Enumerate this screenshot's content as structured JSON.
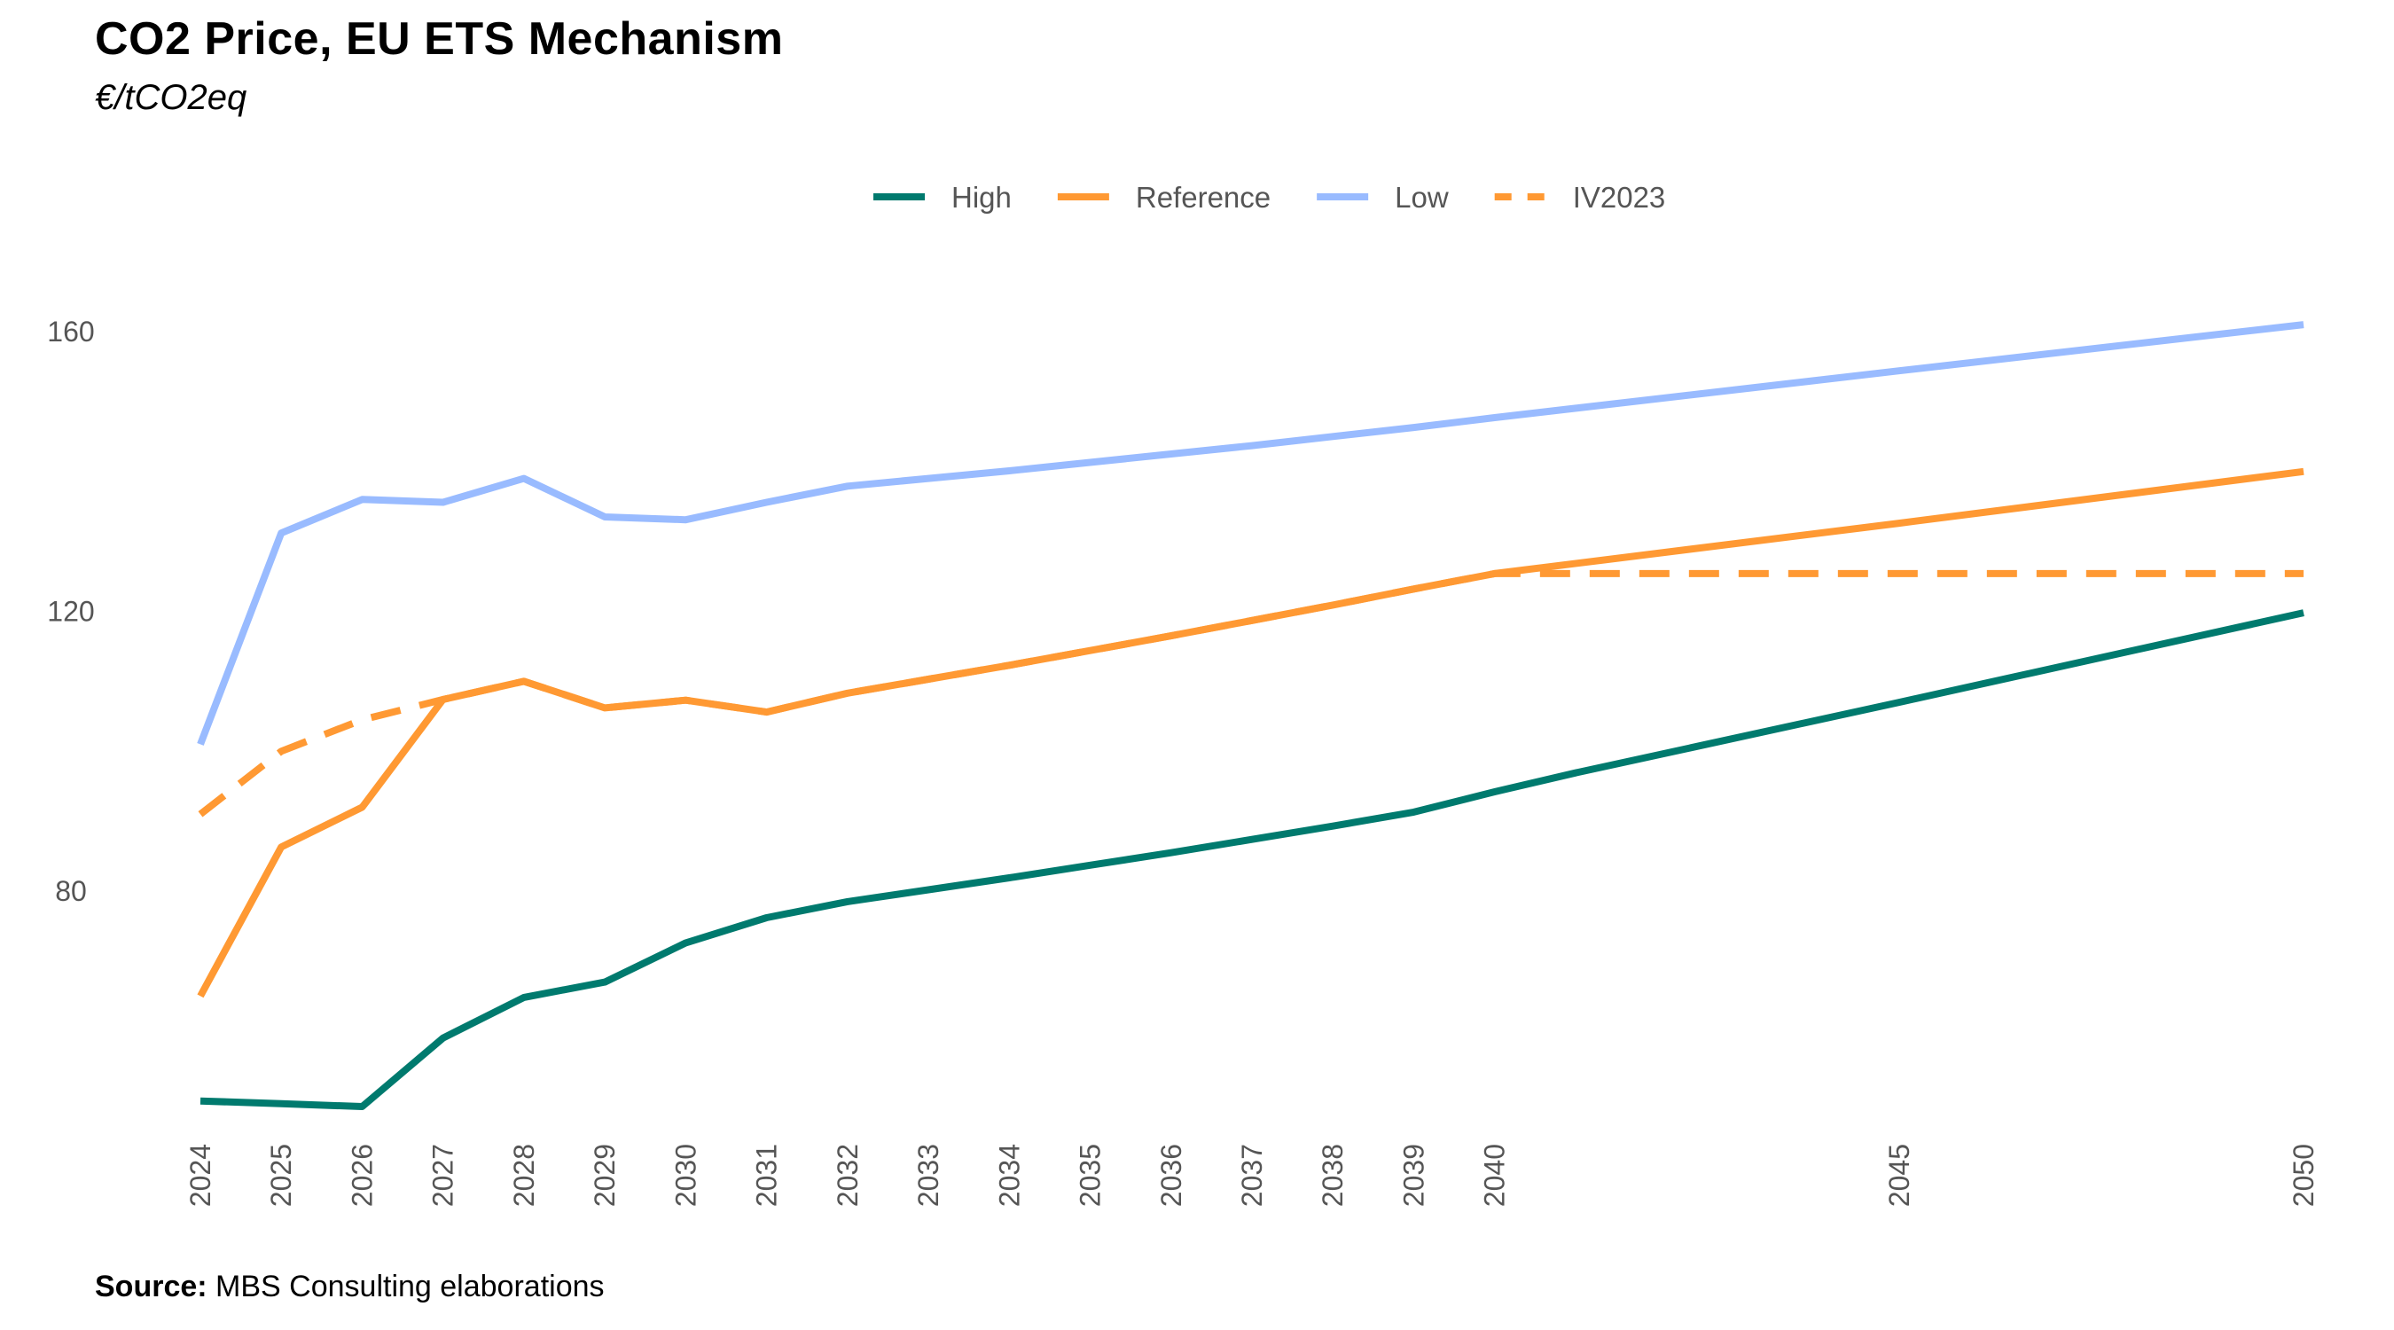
{
  "chart_data": {
    "type": "line",
    "title": "CO2 Price, EU ETS Mechanism",
    "subtitle": "€/tCO2eq",
    "source_label": "Source:",
    "source_text": "MBS Consulting elaborations",
    "x_ticks": [
      "2024",
      "2025",
      "2026",
      "2027",
      "2028",
      "2029",
      "2030",
      "2031",
      "2032",
      "2033",
      "2034",
      "2035",
      "2036",
      "2037",
      "2038",
      "2039",
      "2040",
      "2045",
      "2050"
    ],
    "xlim": [
      2024,
      2050
    ],
    "y_ticks": [
      "80",
      "120",
      "160"
    ],
    "ylim": [
      44,
      160
    ],
    "grid": false,
    "legend_position": "top",
    "series": [
      {
        "name": "High",
        "color": "#007a6e",
        "dash": "solid",
        "x": [
          2024,
          2025,
          2026,
          2027,
          2028,
          2029,
          2030,
          2031,
          2032,
          2033,
          2034,
          2035,
          2036,
          2037,
          2038,
          2039,
          2040,
          2041,
          2045,
          2050
        ],
        "values": [
          50,
          49.6,
          49.2,
          59,
          64.8,
          67,
          72.6,
          76.2,
          78.5,
          80.2,
          81.9,
          83.7,
          85.5,
          87.4,
          89.3,
          91.3,
          94.2,
          96.9,
          107,
          119.8
        ]
      },
      {
        "name": "Reference",
        "color": "#ff9933",
        "dash": "solid",
        "x": [
          2024,
          2025,
          2026,
          2027,
          2028,
          2029,
          2030,
          2031,
          2032,
          2033,
          2034,
          2035,
          2036,
          2037,
          2038,
          2039,
          2040,
          2045,
          2050
        ],
        "values": [
          65,
          86.3,
          92,
          107.4,
          110,
          106.2,
          107.3,
          105.6,
          108.3,
          110.3,
          112.3,
          114.4,
          116.5,
          118.7,
          120.9,
          123.2,
          125.4,
          132.6,
          140
        ]
      },
      {
        "name": "Low",
        "color": "#99bbff",
        "dash": "solid",
        "x": [
          2024,
          2025,
          2026,
          2027,
          2028,
          2029,
          2030,
          2031,
          2032,
          2033,
          2034,
          2035,
          2036,
          2037,
          2038,
          2039,
          2040,
          2045,
          2050
        ],
        "values": [
          101,
          131.2,
          136,
          135.6,
          139,
          133.5,
          133.1,
          135.6,
          137.9,
          139,
          140.1,
          141.3,
          142.5,
          143.7,
          145,
          146.3,
          147.7,
          154.4,
          161
        ]
      },
      {
        "name": "IV2023",
        "color": "#ff9933",
        "dash": "dashed",
        "x": [
          2024,
          2025,
          2026,
          2027,
          2028,
          2029,
          2030,
          2031,
          2032,
          2033,
          2034,
          2035,
          2036,
          2037,
          2038,
          2039,
          2040,
          2045,
          2050
        ],
        "values": [
          91,
          100,
          104.5,
          107.4,
          110,
          106.2,
          107.3,
          105.6,
          108.3,
          110.3,
          112.3,
          114.4,
          116.5,
          118.7,
          120.9,
          123.2,
          125.4,
          125.4,
          125.4
        ]
      }
    ]
  }
}
